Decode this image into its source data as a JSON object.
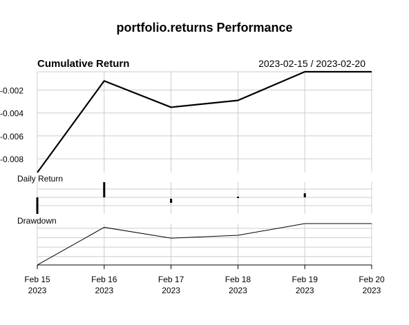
{
  "chart_data": {
    "type": "line",
    "title": "portfolio.returns Performance",
    "date_range": "2023-02-15 / 2023-02-20",
    "x": [
      "2023-02-15",
      "2023-02-16",
      "2023-02-17",
      "2023-02-18",
      "2023-02-19",
      "2023-02-20"
    ],
    "x_tick_labels": [
      {
        "month_day": "Feb 15",
        "year": "2023"
      },
      {
        "month_day": "Feb 16",
        "year": "2023"
      },
      {
        "month_day": "Feb 17",
        "year": "2023"
      },
      {
        "month_day": "Feb 18",
        "year": "2023"
      },
      {
        "month_day": "Feb 19",
        "year": "2023"
      },
      {
        "month_day": "Feb 20",
        "year": "2023"
      }
    ],
    "panels": {
      "cumulative": {
        "title": "Cumulative Return",
        "values": [
          -0.0092,
          -0.0012,
          -0.0035,
          -0.0029,
          -0.0004,
          -0.0004
        ],
        "ylim": [
          -0.0092,
          -0.0004
        ],
        "y_ticks": [
          -0.002,
          -0.004,
          -0.006,
          -0.008
        ],
        "y_tick_labels": [
          "-0.002",
          "-0.004",
          "-0.006",
          "-0.008"
        ]
      },
      "daily": {
        "title": "Daily Return",
        "bars": [
          {
            "x": "2023-02-15",
            "low": -0.0012,
            "high": 0.0
          },
          {
            "x": "2023-02-16",
            "low": 0.0,
            "high": 0.0011
          },
          {
            "x": "2023-02-17",
            "low": -0.0004,
            "high": -0.0001
          },
          {
            "x": "2023-02-18",
            "low": -5e-05,
            "high": 5e-05
          },
          {
            "x": "2023-02-19",
            "low": 0.0,
            "high": 0.0003
          }
        ],
        "ylim": [
          -0.0012,
          0.0011
        ],
        "grid_values": [
          -0.0006,
          0.0,
          0.0006
        ]
      },
      "drawdown": {
        "title": "Drawdown",
        "values": [
          -0.0088,
          -0.0008,
          -0.0031,
          -0.0025,
          0.0,
          0.0
        ],
        "ylim": [
          -0.0088,
          0.0
        ],
        "grid_values": [
          -0.001,
          -0.003,
          -0.005,
          -0.007
        ]
      }
    },
    "grid": true,
    "colors": {
      "series": "#000000",
      "grid": "#cccccc",
      "axis": "#000000"
    }
  }
}
